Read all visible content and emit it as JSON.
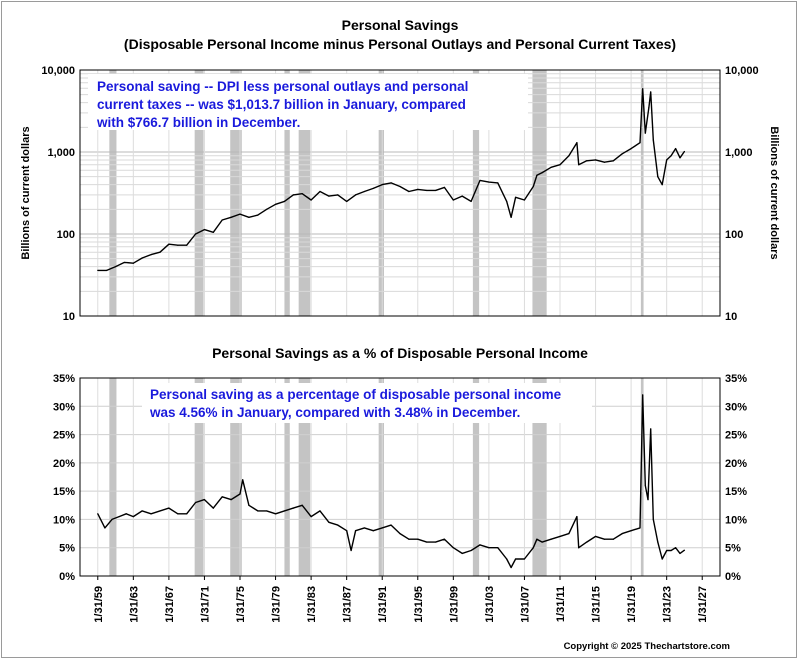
{
  "chart_data": [
    {
      "type": "line",
      "title": "Personal Savings",
      "subtitle": "(Disposable Personal Income minus Personal Outlays and Personal Current Taxes)",
      "ylabel": "Billions of current dollars",
      "ylabel_right": "Billions of current dollars",
      "yscale": "log",
      "ylim": [
        10,
        10000
      ],
      "y_ticks": [
        "10",
        "100",
        "1,000",
        "10,000"
      ],
      "xlim": [
        1957.0,
        2029.0
      ],
      "grid": true,
      "annotation": [
        "Personal saving -- DPI less personal outlays and personal",
        "current taxes -- was $1,013.7 billion in January, compared",
        "with $766.7 billion in December."
      ],
      "series": [
        {
          "color": "#000000",
          "x": [
            1959.0,
            1960.0,
            1961.0,
            1962.0,
            1963.0,
            1964.0,
            1965.0,
            1966.0,
            1967.0,
            1968.0,
            1969.0,
            1970.0,
            1971.0,
            1972.0,
            1973.0,
            1974.0,
            1975.0,
            1976.0,
            1977.0,
            1978.0,
            1979.0,
            1980.0,
            1981.0,
            1982.0,
            1983.0,
            1984.0,
            1985.0,
            1986.0,
            1987.0,
            1988.0,
            1989.0,
            1990.0,
            1991.0,
            1992.0,
            1993.0,
            1994.0,
            1995.0,
            1996.0,
            1997.0,
            1998.0,
            1999.0,
            2000.0,
            2001.0,
            2002.0,
            2003.0,
            2004.0,
            2005.0,
            2005.5,
            2006.0,
            2007.0,
            2008.0,
            2008.4,
            2009.0,
            2010.0,
            2011.0,
            2012.0,
            2012.9,
            2013.1,
            2014.0,
            2015.0,
            2016.0,
            2017.0,
            2018.0,
            2019.0,
            2020.0,
            2020.3,
            2020.6,
            2021.0,
            2021.2,
            2021.5,
            2022.0,
            2022.5,
            2023.0,
            2023.5,
            2024.0,
            2024.5,
            2025.0
          ],
          "y": [
            36,
            36,
            40,
            45,
            44,
            51,
            56,
            60,
            75,
            73,
            73,
            100,
            113,
            105,
            148,
            160,
            175,
            160,
            170,
            200,
            230,
            250,
            300,
            310,
            260,
            330,
            290,
            300,
            250,
            300,
            330,
            360,
            400,
            420,
            380,
            330,
            350,
            340,
            340,
            370,
            260,
            290,
            250,
            450,
            430,
            420,
            250,
            160,
            280,
            260,
            380,
            520,
            560,
            650,
            700,
            900,
            1300,
            700,
            780,
            800,
            750,
            780,
            950,
            1100,
            1300,
            5900,
            1700,
            3500,
            5400,
            1400,
            500,
            400,
            800,
            900,
            1100,
            850,
            1014
          ]
        }
      ]
    },
    {
      "type": "line",
      "title": "Personal Savings as a % of Disposable Personal Income",
      "ylim": [
        0,
        35
      ],
      "y_ticks": [
        "0%",
        "5%",
        "10%",
        "15%",
        "20%",
        "25%",
        "30%",
        "35%"
      ],
      "xlim": [
        1957.0,
        2029.0
      ],
      "x_ticks": [
        "1/31/59",
        "1/31/63",
        "1/31/67",
        "1/31/71",
        "1/31/75",
        "1/31/79",
        "1/31/83",
        "1/31/87",
        "1/31/91",
        "1/31/95",
        "1/31/99",
        "1/31/03",
        "1/31/07",
        "1/31/11",
        "1/31/15",
        "1/31/19",
        "1/31/23",
        "1/31/27"
      ],
      "grid": true,
      "annotation": [
        "Personal saving as a percentage of disposable personal income",
        "was 4.56% in January, compared with 3.48% in December."
      ],
      "series": [
        {
          "color": "#000000",
          "x": [
            1959.0,
            1959.8,
            1960.6,
            1961.4,
            1962.2,
            1963.0,
            1964.0,
            1965.0,
            1966.0,
            1967.0,
            1968.0,
            1969.0,
            1970.0,
            1971.0,
            1972.0,
            1973.0,
            1974.0,
            1975.0,
            1975.3,
            1976.0,
            1977.0,
            1978.0,
            1979.0,
            1980.0,
            1981.0,
            1982.0,
            1983.0,
            1984.0,
            1985.0,
            1986.0,
            1987.0,
            1987.5,
            1988.0,
            1989.0,
            1990.0,
            1991.0,
            1992.0,
            1993.0,
            1994.0,
            1995.0,
            1996.0,
            1997.0,
            1998.0,
            1999.0,
            2000.0,
            2001.0,
            2002.0,
            2003.0,
            2004.0,
            2005.0,
            2005.5,
            2006.0,
            2007.0,
            2008.0,
            2008.4,
            2009.0,
            2010.0,
            2011.0,
            2012.0,
            2012.9,
            2013.1,
            2014.0,
            2015.0,
            2016.0,
            2017.0,
            2018.0,
            2019.0,
            2020.0,
            2020.3,
            2020.6,
            2020.9,
            2021.2,
            2021.5,
            2022.0,
            2022.5,
            2023.0,
            2023.5,
            2024.0,
            2024.5,
            2025.0
          ],
          "y": [
            11.0,
            8.5,
            10.0,
            10.5,
            11.0,
            10.5,
            11.5,
            11.0,
            11.5,
            12.0,
            11.0,
            11.0,
            13.0,
            13.5,
            12.0,
            14.0,
            13.5,
            14.5,
            17.0,
            12.5,
            11.5,
            11.5,
            11.0,
            11.5,
            12.0,
            12.5,
            10.5,
            11.5,
            9.5,
            9.0,
            8.0,
            4.5,
            8.0,
            8.5,
            8.0,
            8.5,
            9.0,
            7.5,
            6.5,
            6.5,
            6.0,
            6.0,
            6.5,
            5.0,
            4.0,
            4.5,
            5.5,
            5.0,
            5.0,
            3.0,
            1.5,
            3.0,
            3.0,
            5.0,
            6.5,
            6.0,
            6.5,
            7.0,
            7.5,
            10.5,
            5.0,
            6.0,
            7.0,
            6.5,
            6.5,
            7.5,
            8.0,
            8.5,
            32.0,
            16.0,
            13.5,
            26.0,
            10.0,
            6.0,
            3.0,
            4.5,
            4.5,
            5.0,
            4.0,
            4.56
          ]
        }
      ]
    }
  ],
  "recessions": [
    [
      1960.3,
      1961.1
    ],
    [
      1969.9,
      1970.9
    ],
    [
      1973.9,
      1975.2
    ],
    [
      1980.0,
      1980.6
    ],
    [
      1981.6,
      1982.9
    ],
    [
      1990.6,
      1991.2
    ],
    [
      2001.2,
      2001.9
    ],
    [
      2007.9,
      2009.5
    ],
    [
      2020.1,
      2020.4
    ]
  ],
  "recession_color": "#c4c4c4",
  "copyright": "Copyright © 2025 Thechartstore.com"
}
